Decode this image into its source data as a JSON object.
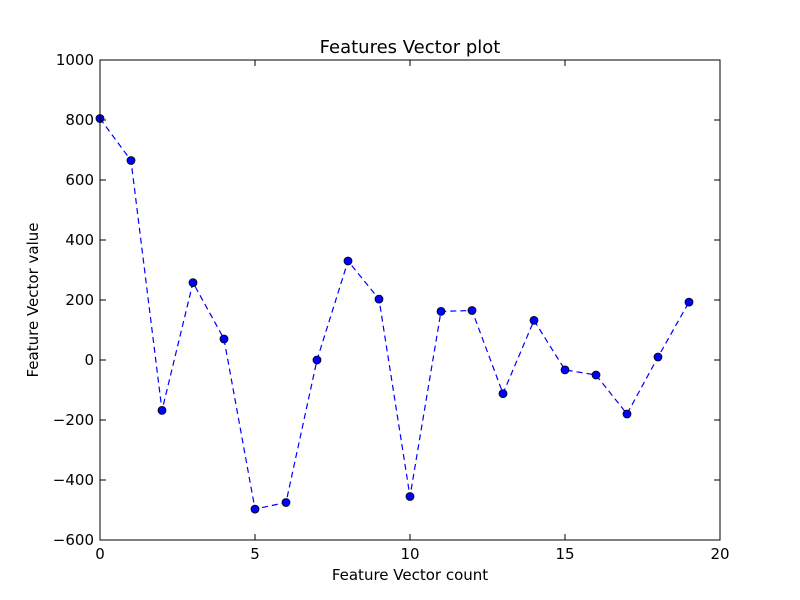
{
  "chart_data": {
    "type": "line",
    "title": "Features Vector plot",
    "xlabel": "Feature Vector count",
    "ylabel": "Feature Vector value",
    "xlim": [
      0,
      20
    ],
    "ylim": [
      -600,
      1000
    ],
    "xticks": [
      0,
      5,
      10,
      15,
      20
    ],
    "yticks": [
      -600,
      -400,
      -200,
      0,
      200,
      400,
      600,
      800,
      1000
    ],
    "grid": false,
    "legend": "none",
    "series": [
      {
        "color": "#0000ff",
        "line_style": "dashed",
        "marker": "circle",
        "x": [
          0,
          1,
          2,
          3,
          4,
          5,
          6,
          7,
          8,
          9,
          10,
          11,
          12,
          13,
          14,
          15,
          16,
          17,
          18,
          19
        ],
        "y": [
          805,
          665,
          -168,
          258,
          70,
          -497,
          -475,
          0,
          330,
          203,
          -455,
          162,
          165,
          -112,
          132,
          -33,
          -50,
          -180,
          10,
          193
        ]
      }
    ]
  }
}
